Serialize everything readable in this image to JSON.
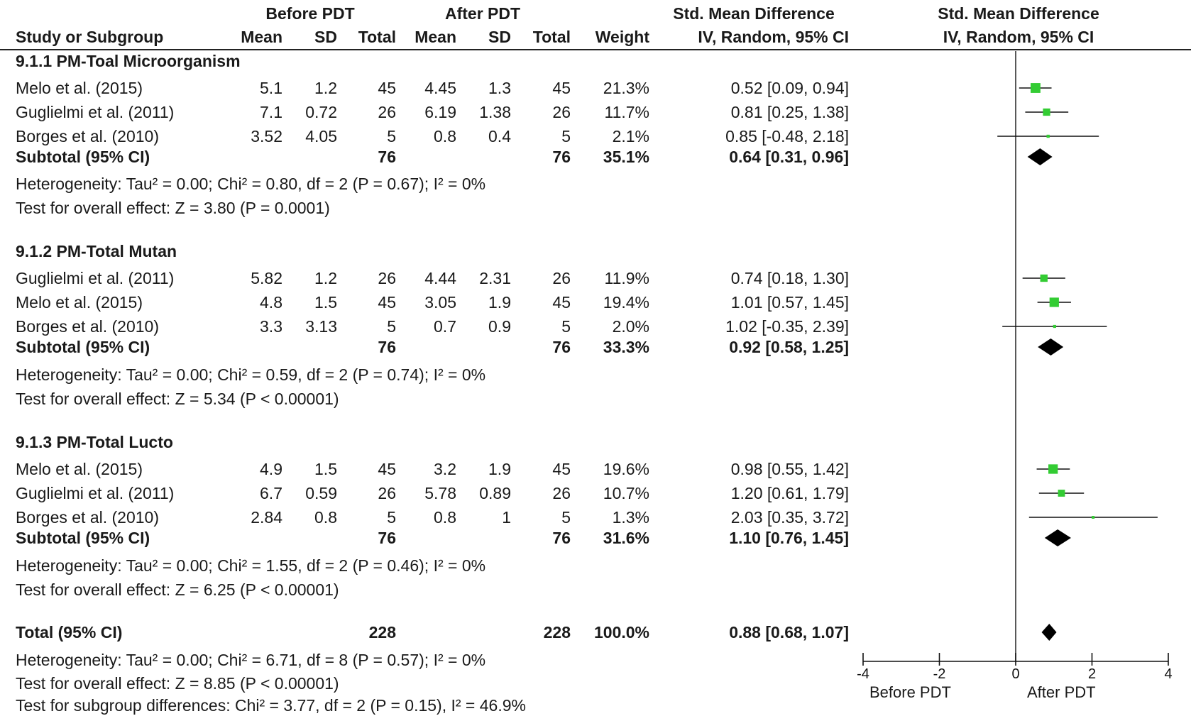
{
  "header": {
    "group1": "Before PDT",
    "group2": "After PDT",
    "effect_col": "Std. Mean Difference",
    "effect_col2": "IV, Random, 95% CI",
    "plot_col": "Std. Mean Difference",
    "plot_col2": "IV, Random, 95% CI",
    "study": "Study or Subgroup",
    "mean": "Mean",
    "sd": "SD",
    "total": "Total",
    "weight": "Weight"
  },
  "subgroups": [
    {
      "title": "9.1.1 PM-Toal Microorganism",
      "studies": [
        {
          "name": "Melo et al. (2015)",
          "m1": "5.1",
          "sd1": "1.2",
          "n1": "45",
          "m2": "4.45",
          "sd2": "1.3",
          "n2": "45",
          "weight": "21.3%",
          "ci": "0.52 [0.09, 0.94]"
        },
        {
          "name": "Guglielmi et al. (2011)",
          "m1": "7.1",
          "sd1": "0.72",
          "n1": "26",
          "m2": "6.19",
          "sd2": "1.38",
          "n2": "26",
          "weight": "11.7%",
          "ci": "0.81 [0.25, 1.38]"
        },
        {
          "name": "Borges et al. (2010)",
          "m1": "3.52",
          "sd1": "4.05",
          "n1": "5",
          "m2": "0.8",
          "sd2": "0.4",
          "n2": "5",
          "weight": "2.1%",
          "ci": "0.85 [-0.48, 2.18]"
        }
      ],
      "subtotal": {
        "label": "Subtotal (95% CI)",
        "n1": "76",
        "n2": "76",
        "weight": "35.1%",
        "ci": "0.64 [0.31, 0.96]"
      },
      "heterogeneity": "Heterogeneity: Tau² = 0.00; Chi² = 0.80, df = 2 (P = 0.67); I² = 0%",
      "overall": "Test for overall effect: Z = 3.80 (P = 0.0001)"
    },
    {
      "title": "9.1.2 PM-Total Mutan",
      "studies": [
        {
          "name": "Guglielmi et al. (2011)",
          "m1": "5.82",
          "sd1": "1.2",
          "n1": "26",
          "m2": "4.44",
          "sd2": "2.31",
          "n2": "26",
          "weight": "11.9%",
          "ci": "0.74 [0.18, 1.30]"
        },
        {
          "name": "Melo et al. (2015)",
          "m1": "4.8",
          "sd1": "1.5",
          "n1": "45",
          "m2": "3.05",
          "sd2": "1.9",
          "n2": "45",
          "weight": "19.4%",
          "ci": "1.01 [0.57, 1.45]"
        },
        {
          "name": "Borges et al. (2010)",
          "m1": "3.3",
          "sd1": "3.13",
          "n1": "5",
          "m2": "0.7",
          "sd2": "0.9",
          "n2": "5",
          "weight": "2.0%",
          "ci": "1.02 [-0.35, 2.39]"
        }
      ],
      "subtotal": {
        "label": "Subtotal (95% CI)",
        "n1": "76",
        "n2": "76",
        "weight": "33.3%",
        "ci": "0.92 [0.58, 1.25]"
      },
      "heterogeneity": "Heterogeneity: Tau² = 0.00; Chi² = 0.59, df = 2 (P = 0.74); I² = 0%",
      "overall": "Test for overall effect: Z = 5.34 (P < 0.00001)"
    },
    {
      "title": "9.1.3 PM-Total Lucto",
      "studies": [
        {
          "name": "Melo et al. (2015)",
          "m1": "4.9",
          "sd1": "1.5",
          "n1": "45",
          "m2": "3.2",
          "sd2": "1.9",
          "n2": "45",
          "weight": "19.6%",
          "ci": "0.98 [0.55, 1.42]"
        },
        {
          "name": "Guglielmi et al. (2011)",
          "m1": "6.7",
          "sd1": "0.59",
          "n1": "26",
          "m2": "5.78",
          "sd2": "0.89",
          "n2": "26",
          "weight": "10.7%",
          "ci": "1.20 [0.61, 1.79]"
        },
        {
          "name": "Borges et al. (2010)",
          "m1": "2.84",
          "sd1": "0.8",
          "n1": "5",
          "m2": "0.8",
          "sd2": "1",
          "n2": "5",
          "weight": "1.3%",
          "ci": "2.03 [0.35, 3.72]"
        }
      ],
      "subtotal": {
        "label": "Subtotal (95% CI)",
        "n1": "76",
        "n2": "76",
        "weight": "31.6%",
        "ci": "1.10 [0.76, 1.45]"
      },
      "heterogeneity": "Heterogeneity: Tau² = 0.00; Chi² = 1.55, df = 2 (P = 0.46); I² = 0%",
      "overall": "Test for overall effect: Z = 6.25 (P < 0.00001)"
    }
  ],
  "total": {
    "label": "Total (95% CI)",
    "n1": "228",
    "n2": "228",
    "weight": "100.0%",
    "ci": "0.88 [0.68, 1.07]",
    "heterogeneity": "Heterogeneity: Tau² = 0.00; Chi² = 6.71, df = 8 (P = 0.57); I² = 0%",
    "overall": "Test for overall effect: Z = 8.85 (P < 0.00001)",
    "subgroup_diff": "Test for subgroup differences: Chi² = 3.77, df = 2 (P = 0.15), I² = 46.9%"
  },
  "chart_data": {
    "type": "forest",
    "xlim": [
      -4,
      4
    ],
    "ticks": [
      -4,
      -2,
      0,
      2,
      4
    ],
    "tick_labels": [
      "-4",
      "-2",
      "0",
      "2",
      "4"
    ],
    "xlabel_left": "Before PDT",
    "xlabel_right": "After PDT",
    "point_color": "#33cc33",
    "diamond_color": "#000000",
    "studies": [
      {
        "est": 0.52,
        "lo": 0.09,
        "hi": 0.94,
        "weight": 21.3
      },
      {
        "est": 0.81,
        "lo": 0.25,
        "hi": 1.38,
        "weight": 11.7
      },
      {
        "est": 0.85,
        "lo": -0.48,
        "hi": 2.18,
        "weight": 2.1
      },
      {
        "est": 0.74,
        "lo": 0.18,
        "hi": 1.3,
        "weight": 11.9
      },
      {
        "est": 1.01,
        "lo": 0.57,
        "hi": 1.45,
        "weight": 19.4
      },
      {
        "est": 1.02,
        "lo": -0.35,
        "hi": 2.39,
        "weight": 2.0
      },
      {
        "est": 0.98,
        "lo": 0.55,
        "hi": 1.42,
        "weight": 19.6
      },
      {
        "est": 1.2,
        "lo": 0.61,
        "hi": 1.79,
        "weight": 10.7
      },
      {
        "est": 2.03,
        "lo": 0.35,
        "hi": 3.72,
        "weight": 1.3
      }
    ],
    "diamonds": [
      {
        "est": 0.64,
        "lo": 0.31,
        "hi": 0.96
      },
      {
        "est": 0.92,
        "lo": 0.58,
        "hi": 1.25
      },
      {
        "est": 1.1,
        "lo": 0.76,
        "hi": 1.45
      },
      {
        "est": 0.88,
        "lo": 0.68,
        "hi": 1.07
      }
    ]
  }
}
